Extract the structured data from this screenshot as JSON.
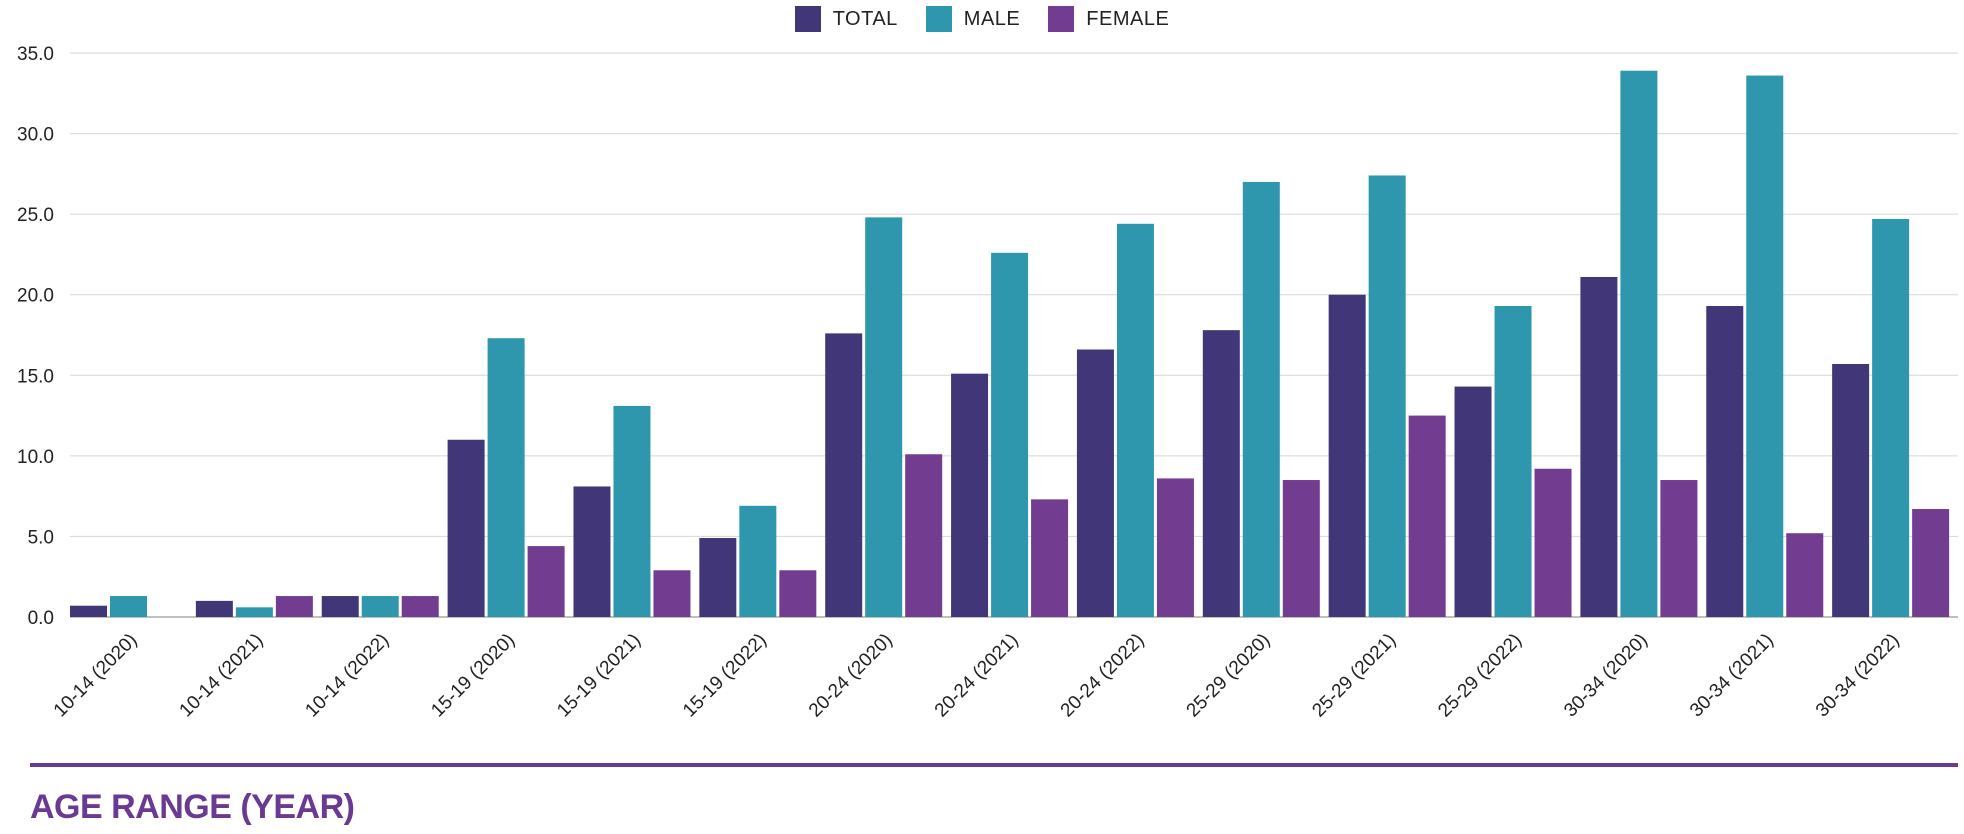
{
  "chart_data": {
    "type": "bar",
    "categories": [
      "10-14 (2020)",
      "10-14 (2021)",
      "10-14 (2022)",
      "15-19 (2020)",
      "15-19 (2021)",
      "15-19 (2022)",
      "20-24 (2020)",
      "20-24 (2021)",
      "20-24 (2022)",
      "25-29 (2020)",
      "25-29 (2021)",
      "25-29 (2022)",
      "30-34 (2020)",
      "30-34 (2021)",
      "30-34 (2022)"
    ],
    "series": [
      {
        "name": "TOTAL",
        "color": "#413677",
        "values": [
          0.7,
          1.0,
          1.3,
          11.0,
          8.1,
          4.9,
          17.6,
          15.1,
          16.6,
          17.8,
          20.0,
          14.3,
          21.1,
          19.3,
          15.7
        ]
      },
      {
        "name": "MALE",
        "color": "#2e97ad",
        "values": [
          1.3,
          0.6,
          1.3,
          17.3,
          13.1,
          6.9,
          24.8,
          22.6,
          24.4,
          27.0,
          27.4,
          19.3,
          33.9,
          33.6,
          24.7
        ]
      },
      {
        "name": "FEMALE",
        "color": "#723c91",
        "values": [
          0.0,
          1.3,
          1.3,
          4.4,
          2.9,
          2.9,
          10.1,
          7.3,
          8.6,
          8.5,
          12.5,
          9.2,
          8.5,
          5.2,
          6.7
        ]
      }
    ],
    "yticks": [
      "0.0",
      "5.0",
      "10.0",
      "15.0",
      "20.0",
      "25.0",
      "30.0",
      "35.0"
    ],
    "ylim": [
      0,
      35
    ],
    "grid": true,
    "legend_position": "top-center",
    "xlabel": "AGE RANGE (YEAR)"
  }
}
